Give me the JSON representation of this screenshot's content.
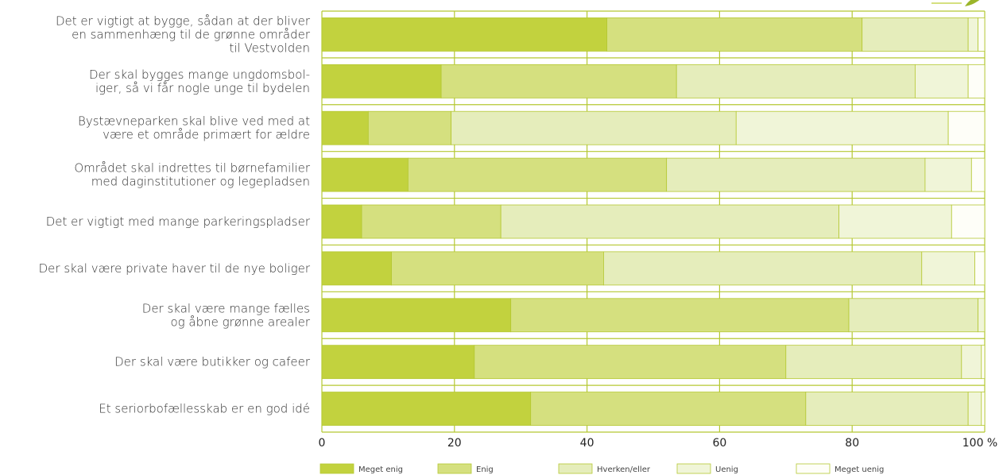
{
  "chart_data": {
    "type": "bar",
    "orientation": "horizontal",
    "stacked": true,
    "categories": [
      [
        "Det  er vigtigt at bygge, sådan at der bliver",
        "en sammenhæng til de grønne områder",
        "til Vestvolden"
      ],
      [
        "Der skal bygges mange ungdomsbol-",
        "iger, så vi får nogle unge til bydelen"
      ],
      [
        "Bystævneparken skal blive ved med at",
        "være et område primært for ældre"
      ],
      [
        "Området skal indrettes til børnefamilier",
        "med daginstitutioner og legepladsen"
      ],
      [
        "Det er vigtigt med mange parkeringspladser"
      ],
      [
        "Der skal være private haver til de nye boliger"
      ],
      [
        "Der skal være mange fælles",
        "og åbne grønne arealer"
      ],
      [
        "Der skal være butikker og cafeer"
      ],
      [
        "Et seriorbofællesskab er en god idé"
      ]
    ],
    "series": [
      {
        "name": "Meget enig",
        "color": "#c2d23e",
        "values": [
          43,
          18,
          7,
          13,
          6,
          10.5,
          28.5,
          23,
          31.5
        ]
      },
      {
        "name": "Enig",
        "color": "#d5e07f",
        "values": [
          38.5,
          35.5,
          12.5,
          39,
          21,
          32,
          51,
          47,
          41.5
        ]
      },
      {
        "name": "Hverken/eller",
        "color": "#e5edbb",
        "values": [
          16,
          36,
          43,
          39,
          51,
          48,
          19.5,
          26.5,
          24.5
        ]
      },
      {
        "name": "Uenig",
        "color": "#f0f5d8",
        "values": [
          1.5,
          8,
          32,
          7,
          17,
          8,
          1,
          3,
          2
        ]
      },
      {
        "name": "Meget uenig",
        "color": "#fefef8",
        "values": [
          1,
          2.5,
          5.5,
          2,
          5,
          1.5,
          0,
          0.5,
          0.5
        ]
      }
    ],
    "x_ticks": [
      "0",
      "20",
      "40",
      "60",
      "80",
      "100 %"
    ],
    "xlim": [
      0,
      100
    ],
    "grid": true,
    "legend_position": "bottom",
    "colors": {
      "axis": "#b5c832",
      "grid": "#b5c832",
      "bar_border": "#b5c832"
    }
  }
}
